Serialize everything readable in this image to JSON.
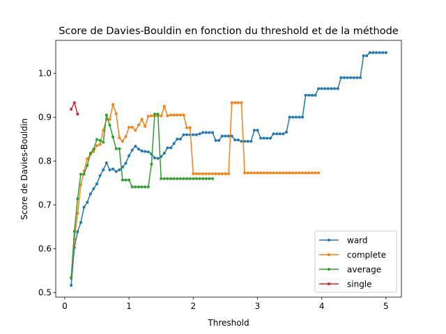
{
  "chart_data": {
    "type": "line",
    "title": "Score de Davies-Bouldin en fonction du threshold et de la méthode",
    "xlabel": "Threshold",
    "ylabel": "Score de Davies-Bouldin",
    "xlim": [
      -0.14,
      5.24
    ],
    "ylim": [
      0.49,
      1.075
    ],
    "xticks": [
      0,
      1,
      2,
      3,
      4,
      5
    ],
    "yticks": [
      0.5,
      0.6,
      0.7,
      0.8,
      0.9,
      1.0
    ],
    "ytick_labels": [
      "0.5",
      "0.6",
      "0.7",
      "0.8",
      "0.9",
      "1.0"
    ],
    "grid": false,
    "legend_position": "lower right",
    "series": [
      {
        "name": "ward",
        "color": "#1f77b4",
        "x": [
          0.1,
          0.15,
          0.2,
          0.25,
          0.3,
          0.35,
          0.4,
          0.45,
          0.5,
          0.55,
          0.6,
          0.65,
          0.7,
          0.75,
          0.8,
          0.85,
          0.9,
          0.95,
          1.0,
          1.05,
          1.1,
          1.15,
          1.2,
          1.25,
          1.3,
          1.35,
          1.4,
          1.45,
          1.5,
          1.55,
          1.6,
          1.65,
          1.7,
          1.75,
          1.8,
          1.85,
          1.9,
          1.95,
          2.0,
          2.05,
          2.1,
          2.15,
          2.2,
          2.25,
          2.3,
          2.35,
          2.4,
          2.45,
          2.5,
          2.55,
          2.6,
          2.65,
          2.7,
          2.75,
          2.8,
          2.85,
          2.9,
          2.95,
          3.0,
          3.05,
          3.1,
          3.15,
          3.2,
          3.25,
          3.3,
          3.35,
          3.4,
          3.45,
          3.5,
          3.55,
          3.6,
          3.65,
          3.7,
          3.75,
          3.8,
          3.85,
          3.9,
          3.95,
          4.0,
          4.05,
          4.1,
          4.15,
          4.2,
          4.25,
          4.3,
          4.35,
          4.4,
          4.45,
          4.5,
          4.55,
          4.6,
          4.65,
          4.7,
          4.75,
          4.8,
          4.85,
          4.9,
          4.95,
          5.0
        ],
        "y": [
          0.517,
          0.603,
          0.639,
          0.66,
          0.695,
          0.706,
          0.725,
          0.737,
          0.748,
          0.767,
          0.78,
          0.796,
          0.78,
          0.782,
          0.776,
          0.78,
          0.786,
          0.795,
          0.812,
          0.825,
          0.834,
          0.827,
          0.823,
          0.822,
          0.821,
          0.816,
          0.807,
          0.806,
          0.81,
          0.818,
          0.83,
          0.83,
          0.84,
          0.85,
          0.85,
          0.86,
          0.86,
          0.86,
          0.86,
          0.86,
          0.862,
          0.865,
          0.865,
          0.865,
          0.865,
          0.847,
          0.847,
          0.857,
          0.857,
          0.857,
          0.857,
          0.848,
          0.848,
          0.845,
          0.845,
          0.845,
          0.845,
          0.87,
          0.87,
          0.852,
          0.852,
          0.852,
          0.852,
          0.862,
          0.862,
          0.862,
          0.862,
          0.866,
          0.9,
          0.9,
          0.9,
          0.9,
          0.9,
          0.95,
          0.95,
          0.95,
          0.95,
          0.965,
          0.965,
          0.965,
          0.965,
          0.965,
          0.965,
          0.965,
          0.99,
          0.99,
          0.99,
          0.99,
          0.99,
          0.99,
          0.99,
          1.04,
          1.04,
          1.047,
          1.047,
          1.047,
          1.047,
          1.047,
          1.047
        ]
      },
      {
        "name": "complete",
        "color": "#ff7f0e",
        "x": [
          0.1,
          0.15,
          0.2,
          0.25,
          0.3,
          0.35,
          0.4,
          0.45,
          0.5,
          0.55,
          0.6,
          0.65,
          0.7,
          0.75,
          0.8,
          0.85,
          0.9,
          0.95,
          1.0,
          1.05,
          1.1,
          1.15,
          1.2,
          1.25,
          1.3,
          1.35,
          1.4,
          1.45,
          1.5,
          1.55,
          1.6,
          1.65,
          1.7,
          1.75,
          1.8,
          1.85,
          1.9,
          1.95,
          2.0,
          2.05,
          2.1,
          2.15,
          2.2,
          2.25,
          2.3,
          2.35,
          2.4,
          2.45,
          2.5,
          2.55,
          2.6,
          2.65,
          2.7,
          2.75,
          2.8,
          2.85,
          2.9,
          2.95,
          3.0,
          3.05,
          3.1,
          3.15,
          3.2,
          3.25,
          3.3,
          3.35,
          3.4,
          3.45,
          3.5,
          3.55,
          3.6,
          3.65,
          3.7,
          3.75,
          3.8,
          3.85,
          3.9,
          3.95
        ],
        "y": [
          0.535,
          0.622,
          0.681,
          0.746,
          0.777,
          0.805,
          0.815,
          0.822,
          0.835,
          0.838,
          0.87,
          0.895,
          0.895,
          0.929,
          0.908,
          0.853,
          0.845,
          0.856,
          0.877,
          0.877,
          0.87,
          0.882,
          0.895,
          0.879,
          0.902,
          0.903,
          0.903,
          0.903,
          0.903,
          0.925,
          0.903,
          0.905,
          0.905,
          0.905,
          0.905,
          0.905,
          0.876,
          0.876,
          0.771,
          0.771,
          0.771,
          0.771,
          0.771,
          0.771,
          0.771,
          0.771,
          0.771,
          0.771,
          0.771,
          0.771,
          0.933,
          0.933,
          0.933,
          0.933,
          0.773,
          0.773,
          0.773,
          0.773,
          0.773,
          0.773,
          0.773,
          0.773,
          0.773,
          0.773,
          0.773,
          0.773,
          0.773,
          0.773,
          0.773,
          0.773,
          0.773,
          0.773,
          0.773,
          0.773,
          0.773,
          0.773,
          0.773,
          0.773
        ]
      },
      {
        "name": "average",
        "color": "#2ca02c",
        "x": [
          0.1,
          0.15,
          0.2,
          0.25,
          0.3,
          0.35,
          0.4,
          0.45,
          0.5,
          0.55,
          0.6,
          0.65,
          0.7,
          0.75,
          0.8,
          0.85,
          0.9,
          0.95,
          1.0,
          1.05,
          1.1,
          1.15,
          1.2,
          1.25,
          1.3,
          1.35,
          1.4,
          1.45,
          1.5,
          1.55,
          1.6,
          1.65,
          1.7,
          1.75,
          1.8,
          1.85,
          1.9,
          1.95,
          2.0,
          2.05,
          2.1,
          2.15,
          2.2,
          2.25,
          2.3
        ],
        "y": [
          0.533,
          0.64,
          0.714,
          0.77,
          0.77,
          0.79,
          0.818,
          0.827,
          0.849,
          0.847,
          0.843,
          0.905,
          0.882,
          0.855,
          0.828,
          0.828,
          0.757,
          0.757,
          0.757,
          0.741,
          0.741,
          0.741,
          0.741,
          0.741,
          0.741,
          0.793,
          0.907,
          0.907,
          0.76,
          0.76,
          0.76,
          0.76,
          0.76,
          0.76,
          0.76,
          0.76,
          0.76,
          0.76,
          0.76,
          0.76,
          0.76,
          0.76,
          0.76,
          0.76,
          0.76
        ]
      },
      {
        "name": "single",
        "color": "#d62728",
        "x": [
          0.1,
          0.15,
          0.2
        ],
        "y": [
          0.918,
          0.933,
          0.907
        ]
      }
    ]
  }
}
